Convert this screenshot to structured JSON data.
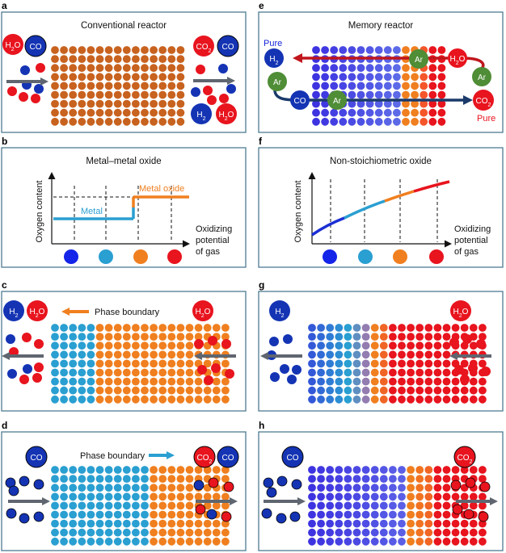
{
  "colors": {
    "brown": "#c8621f",
    "orange": "#f07f1f",
    "cyan": "#2a9fd1",
    "blue": "#1434b4",
    "violet": "#5a45e6",
    "red": "#e8141e",
    "green": "#4f8d36",
    "arrow": "#5f6670",
    "pure_blue": "#1424d8",
    "pure_red": "#e8141e",
    "frame": "#4f7b91"
  },
  "panels": {
    "a": {
      "label": "a",
      "title": "Conventional reactor",
      "mol_left": [
        "H2O",
        "CO"
      ],
      "mol_right_top": [
        "CO2",
        "CO"
      ],
      "mol_right_bottom": [
        "H2",
        "H2O"
      ]
    },
    "e": {
      "label": "e",
      "title": "Memory reactor",
      "pure_left": "Pure",
      "pure_right": "Pure",
      "mol": [
        "H2",
        "Ar",
        "Ar",
        "Ar",
        "Ar",
        "H2O",
        "CO",
        "CO2"
      ]
    },
    "b": {
      "label": "b",
      "title": "Metal–metal oxide",
      "ylabel": "Oxygen content",
      "xlabel": [
        "Oxidizing",
        "potential",
        "of gas"
      ],
      "curve_low": "Metal",
      "curve_high": "Metal oxide"
    },
    "f": {
      "label": "f",
      "title": "Non-stoichiometric oxide",
      "ylabel": "Oxygen content",
      "xlabel": [
        "Oxidizing",
        "potential",
        "of gas"
      ]
    },
    "c": {
      "label": "c",
      "boundary_label": "Phase boundary",
      "mol_left": [
        "H2",
        "H2O"
      ],
      "mol_right": [
        "H2O"
      ]
    },
    "g": {
      "label": "g",
      "mol_left": [
        "H2"
      ],
      "mol_right": [
        "H2O"
      ]
    },
    "d": {
      "label": "d",
      "boundary_label": "Phase boundary",
      "mol_left": [
        "CO"
      ],
      "mol_right": [
        "CO2",
        "CO"
      ]
    },
    "h": {
      "label": "h",
      "mol_left": [
        "CO"
      ],
      "mol_right": [
        "CO2"
      ]
    }
  }
}
